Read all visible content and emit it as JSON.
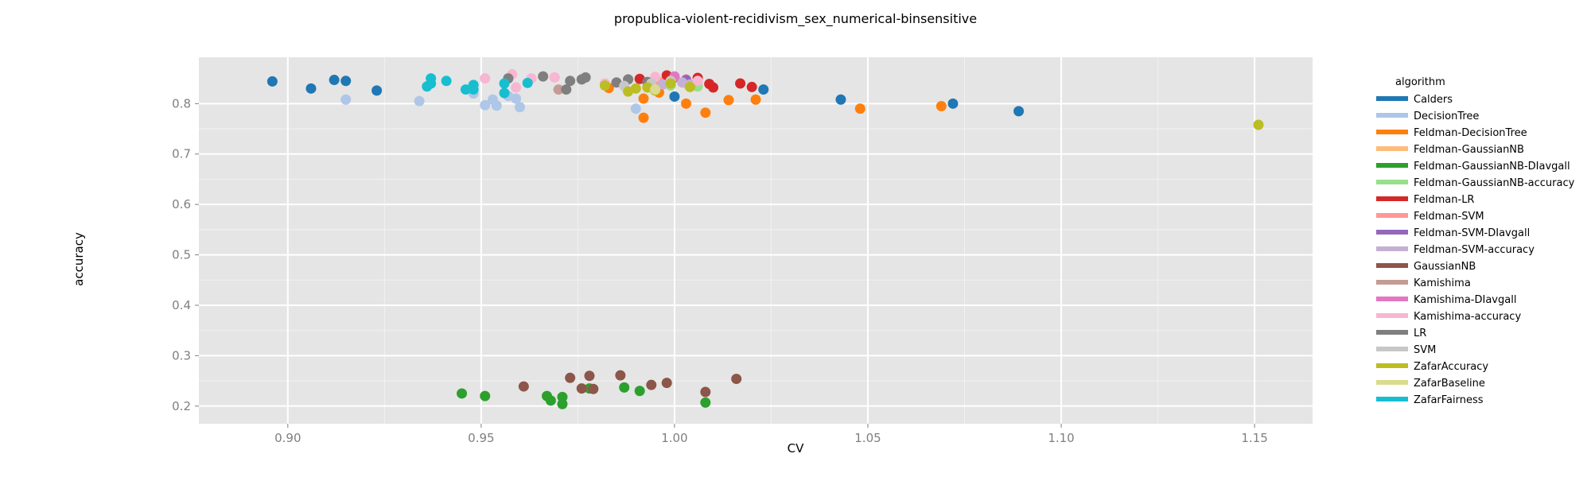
{
  "chart_data": {
    "type": "scatter",
    "title": "propublica-violent-recidivism_sex_numerical-binsensitive",
    "xlabel": "CV",
    "ylabel": "accuracy",
    "xlim": [
      0.877,
      1.165
    ],
    "ylim": [
      0.165,
      0.892
    ],
    "xticks": [
      "0.90",
      "0.95",
      "1.00",
      "1.05",
      "1.10",
      "1.15"
    ],
    "yticks": [
      "0.2",
      "0.3",
      "0.4",
      "0.5",
      "0.6",
      "0.7",
      "0.8"
    ],
    "grid": true,
    "legend_title": "algorithm",
    "legend_position": "right",
    "series": [
      {
        "name": "Calders",
        "color": "#1f77b4",
        "points": [
          [
            0.896,
            0.844
          ],
          [
            0.906,
            0.83
          ],
          [
            0.912,
            0.847
          ],
          [
            0.915,
            0.845
          ],
          [
            0.923,
            0.826
          ],
          [
            1.0,
            0.814
          ],
          [
            1.023,
            0.828
          ],
          [
            1.043,
            0.808
          ],
          [
            1.072,
            0.8
          ],
          [
            1.089,
            0.785
          ]
        ]
      },
      {
        "name": "DecisionTree",
        "color": "#aec7e8",
        "points": [
          [
            0.915,
            0.808
          ],
          [
            0.934,
            0.805
          ],
          [
            0.948,
            0.82
          ],
          [
            0.951,
            0.797
          ],
          [
            0.953,
            0.808
          ],
          [
            0.954,
            0.796
          ],
          [
            0.957,
            0.815
          ],
          [
            0.959,
            0.81
          ],
          [
            0.96,
            0.793
          ],
          [
            0.99,
            0.79
          ]
        ]
      },
      {
        "name": "Feldman-DecisionTree",
        "color": "#ff7f0e",
        "points": [
          [
            0.983,
            0.831
          ],
          [
            0.992,
            0.81
          ],
          [
            0.992,
            0.772
          ],
          [
            0.996,
            0.822
          ],
          [
            1.003,
            0.8
          ],
          [
            1.008,
            0.782
          ],
          [
            1.014,
            0.807
          ],
          [
            1.021,
            0.808
          ],
          [
            1.048,
            0.79
          ],
          [
            1.069,
            0.795
          ]
        ]
      },
      {
        "name": "Feldman-GaussianNB",
        "color": "#ffbb78",
        "points": [
          [
            0.993,
            0.835
          ],
          [
            1.003,
            0.84
          ]
        ]
      },
      {
        "name": "Feldman-GaussianNB-DIavgall",
        "color": "#2ca02c",
        "points": [
          [
            0.945,
            0.225
          ],
          [
            0.951,
            0.22
          ],
          [
            0.967,
            0.22
          ],
          [
            0.968,
            0.211
          ],
          [
            0.971,
            0.218
          ],
          [
            0.971,
            0.204
          ],
          [
            0.978,
            0.235
          ],
          [
            0.987,
            0.237
          ],
          [
            0.991,
            0.23
          ],
          [
            1.008,
            0.207
          ]
        ]
      },
      {
        "name": "Feldman-GaussianNB-accuracy",
        "color": "#98df8a",
        "points": [
          [
            0.999,
            0.836
          ],
          [
            1.006,
            0.834
          ]
        ]
      },
      {
        "name": "Feldman-LR",
        "color": "#d62728",
        "points": [
          [
            0.991,
            0.849
          ],
          [
            0.998,
            0.856
          ],
          [
            1.004,
            0.836
          ],
          [
            1.006,
            0.851
          ],
          [
            1.009,
            0.839
          ],
          [
            1.01,
            0.832
          ],
          [
            1.017,
            0.84
          ],
          [
            1.02,
            0.833
          ]
        ]
      },
      {
        "name": "Feldman-SVM",
        "color": "#ff9896",
        "points": [
          [
            0.996,
            0.843
          ],
          [
            1.003,
            0.848
          ]
        ]
      },
      {
        "name": "Feldman-SVM-DIavgall",
        "color": "#9467bd",
        "points": [
          [
            1.0,
            0.852
          ],
          [
            1.003,
            0.847
          ]
        ]
      },
      {
        "name": "Feldman-SVM-accuracy",
        "color": "#c5b0d5",
        "points": [
          [
            0.997,
            0.838
          ],
          [
            1.002,
            0.842
          ],
          [
            1.004,
            0.838
          ]
        ]
      },
      {
        "name": "GaussianNB",
        "color": "#8c564b",
        "points": [
          [
            0.961,
            0.239
          ],
          [
            0.973,
            0.256
          ],
          [
            0.976,
            0.235
          ],
          [
            0.978,
            0.26
          ],
          [
            0.979,
            0.234
          ],
          [
            0.986,
            0.261
          ],
          [
            0.994,
            0.242
          ],
          [
            0.998,
            0.246
          ],
          [
            1.008,
            0.228
          ],
          [
            1.016,
            0.254
          ]
        ]
      },
      {
        "name": "Kamishima",
        "color": "#c49c94",
        "points": [
          [
            0.97,
            0.828
          ]
        ]
      },
      {
        "name": "Kamishima-DIavgall",
        "color": "#e377c2",
        "points": [
          [
            1.0,
            0.854
          ]
        ]
      },
      {
        "name": "Kamishima-accuracy",
        "color": "#f7b6d2",
        "points": [
          [
            0.951,
            0.85
          ],
          [
            0.958,
            0.858
          ],
          [
            0.959,
            0.832
          ],
          [
            0.963,
            0.85
          ],
          [
            0.969,
            0.852
          ],
          [
            0.982,
            0.84
          ],
          [
            0.995,
            0.853
          ],
          [
            1.006,
            0.845
          ]
        ]
      },
      {
        "name": "LR",
        "color": "#7f7f7f",
        "points": [
          [
            0.957,
            0.85
          ],
          [
            0.966,
            0.854
          ],
          [
            0.972,
            0.828
          ],
          [
            0.973,
            0.845
          ],
          [
            0.976,
            0.848
          ],
          [
            0.977,
            0.852
          ],
          [
            0.985,
            0.842
          ],
          [
            0.988,
            0.848
          ],
          [
            0.993,
            0.843
          ]
        ]
      },
      {
        "name": "SVM",
        "color": "#c7c7c7",
        "points": [
          [
            0.987,
            0.835
          ],
          [
            0.994,
            0.84
          ],
          [
            0.999,
            0.845
          ]
        ]
      },
      {
        "name": "ZafarAccuracy",
        "color": "#bcbd22",
        "points": [
          [
            0.982,
            0.836
          ],
          [
            0.988,
            0.824
          ],
          [
            0.99,
            0.83
          ],
          [
            0.993,
            0.832
          ],
          [
            0.995,
            0.826
          ],
          [
            0.999,
            0.84
          ],
          [
            1.004,
            0.833
          ],
          [
            1.151,
            0.758
          ]
        ]
      },
      {
        "name": "ZafarBaseline",
        "color": "#dbdb8d",
        "points": [
          [
            0.995,
            0.828
          ]
        ]
      },
      {
        "name": "ZafarFairness",
        "color": "#17becf",
        "points": [
          [
            0.936,
            0.834
          ],
          [
            0.937,
            0.84
          ],
          [
            0.937,
            0.85
          ],
          [
            0.941,
            0.845
          ],
          [
            0.946,
            0.828
          ],
          [
            0.948,
            0.837
          ],
          [
            0.948,
            0.828
          ],
          [
            0.956,
            0.84
          ],
          [
            0.956,
            0.821
          ],
          [
            0.962,
            0.841
          ]
        ]
      }
    ]
  }
}
